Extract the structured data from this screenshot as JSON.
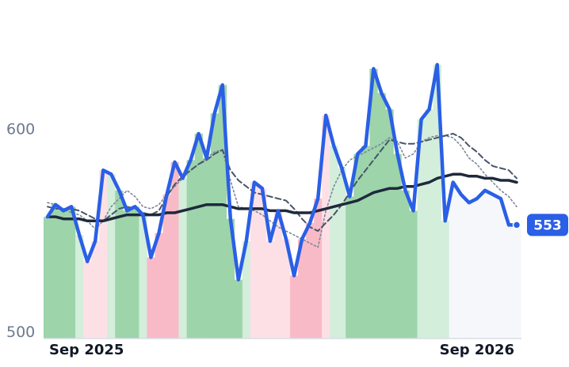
{
  "chart_data": {
    "type": "line",
    "xlim": [
      0,
      59
    ],
    "xticks": [
      {
        "value": 0,
        "label": "Sep 2025"
      },
      {
        "value": 54,
        "label": "Sep 2026"
      }
    ],
    "ylim": [
      497,
      660
    ],
    "yticks": [
      500,
      600
    ],
    "band_colors": [
      "#9dd4aa",
      "#9dd4aa",
      "#9dd4aa",
      "#9dd4aa",
      "#d3eedb",
      "#fde0e6",
      "#fde0e6",
      "#fde0e6",
      "#d3eedb",
      "#9dd4aa",
      "#9dd4aa",
      "#9dd4aa",
      "#d3eedb",
      "#f9bac7",
      "#f9bac7",
      "#f9bac7",
      "#f9bac7",
      "#d3eedb",
      "#9dd4aa",
      "#9dd4aa",
      "#9dd4aa",
      "#9dd4aa",
      "#9dd4aa",
      "#9dd4aa",
      "#9dd4aa",
      "#d3eedb",
      "#fde0e6",
      "#fde0e6",
      "#fde0e6",
      "#fde0e6",
      "#fde0e6",
      "#f9bac7",
      "#f9bac7",
      "#f9bac7",
      "#f9bac7",
      "#fde0e6",
      "#d3eedb",
      "#d3eedb",
      "#9dd4aa",
      "#9dd4aa",
      "#9dd4aa",
      "#9dd4aa",
      "#9dd4aa",
      "#9dd4aa",
      "#9dd4aa",
      "#9dd4aa",
      "#9dd4aa",
      "#d3eedb",
      "#d3eedb",
      "#d3eedb",
      "#d3eedb",
      "#f5f7fa",
      "#f5f7fa",
      "#f5f7fa",
      "#f5f7fa",
      "#f5f7fa",
      "#f5f7fa",
      "#f5f7fa",
      "#f5f7fa",
      "#f5f7fa"
    ],
    "series": [
      {
        "color": "#2a5fe6",
        "values": [
          557,
          563,
          560,
          562,
          548,
          535,
          545,
          580,
          578,
          570,
          560,
          562,
          558,
          537,
          549,
          568,
          584,
          576,
          585,
          598,
          586,
          608,
          622,
          556,
          526,
          545,
          574,
          571,
          545,
          560,
          546,
          528,
          546,
          554,
          566,
          607,
          592,
          581,
          567,
          588,
          592,
          630,
          618,
          610,
          588,
          570,
          560,
          605,
          610,
          632,
          555,
          574,
          568,
          564,
          566,
          570,
          568,
          566,
          553,
          553
        ]
      },
      {
        "color": "#1e293b",
        "values": [
          557,
          557,
          556,
          556,
          556,
          555,
          555,
          555,
          556,
          557,
          558,
          558,
          558,
          558,
          558,
          559,
          559,
          560,
          561,
          562,
          563,
          563,
          563,
          562,
          561,
          561,
          561,
          561,
          560,
          560,
          560,
          559,
          559,
          559,
          560,
          561,
          562,
          563,
          564,
          565,
          567,
          569,
          570,
          571,
          571,
          572,
          572,
          573,
          574,
          576,
          577,
          578,
          578,
          577,
          577,
          576,
          576,
          575,
          575,
          574
        ]
      },
      {
        "color": "#475569",
        "values": [
          562,
          561,
          561,
          561,
          560,
          558,
          556,
          555,
          558,
          561,
          562,
          561,
          559,
          558,
          560,
          567,
          573,
          577,
          580,
          583,
          585,
          588,
          590,
          580,
          575,
          572,
          569,
          568,
          567,
          566,
          565,
          561,
          556,
          552,
          550,
          554,
          558,
          563,
          569,
          575,
          580,
          585,
          590,
          595,
          594,
          593,
          593,
          594,
          595,
          596,
          597,
          598,
          596,
          592,
          589,
          585,
          582,
          581,
          580,
          576
        ]
      },
      {
        "color": "#7c8798",
        "values": [
          564,
          563,
          561,
          559,
          558,
          555,
          551,
          555,
          562,
          566,
          570,
          567,
          562,
          561,
          563,
          568,
          572,
          576,
          580,
          583,
          586,
          589,
          590,
          575,
          562,
          561,
          560,
          558,
          555,
          552,
          550,
          548,
          546,
          544,
          542,
          560,
          572,
          580,
          585,
          587,
          589,
          591,
          593,
          596,
          594,
          586,
          588,
          594,
          596,
          597,
          597,
          596,
          592,
          586,
          583,
          578,
          574,
          570,
          567,
          562
        ]
      }
    ]
  }
}
